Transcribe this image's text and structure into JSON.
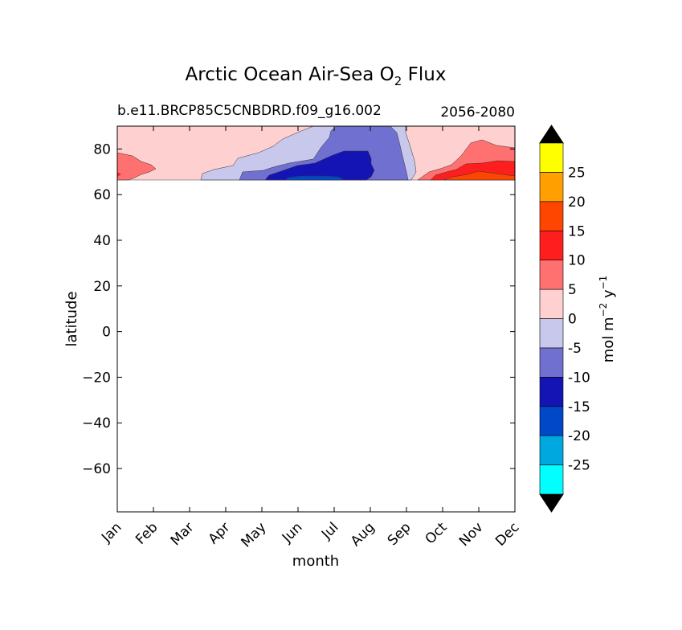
{
  "chart_data": {
    "type": "contour",
    "title_main": "Arctic Ocean Air-Sea O",
    "title_sub_2": "2",
    "title_end": " Flux",
    "subtitle_left": "b.e11.BRCP85C5CNBDRD.f09_g16.002",
    "subtitle_right": "2056-2080",
    "xlabel": "month",
    "ylabel": "latitude",
    "x_ticks": [
      "Jan",
      "Feb",
      "Mar",
      "Apr",
      "May",
      "Jun",
      "Jul",
      "Aug",
      "Sep",
      "Oct",
      "Nov",
      "Dec"
    ],
    "y_ticks": [
      80,
      60,
      40,
      20,
      0,
      -20,
      -40,
      -60
    ],
    "y_tick_labels": [
      "80",
      "60",
      "40",
      "20",
      "0",
      "−20",
      "−40",
      "−60"
    ],
    "ylim": [
      -79,
      90
    ],
    "data_lat_range": [
      66.5,
      90
    ],
    "colorbar": {
      "label_main": "mol m",
      "label_exp1": "−2",
      "label_y": " y",
      "label_exp2": "−1",
      "levels": [
        "-30",
        "-25",
        "-20",
        "-15",
        "-10",
        "-5",
        "0",
        "5",
        "10",
        "15",
        "20",
        "25",
        "30"
      ],
      "tick_labels": [
        "-25",
        "-20",
        "-15",
        "-10",
        "-5",
        "0",
        "5",
        "10",
        "15",
        "20",
        "25"
      ],
      "colors": [
        "#00ffff",
        "#00a8e0",
        "#0048c8",
        "#1414b4",
        "#7070d0",
        "#c8c8ec",
        "#ffd0d0",
        "#ff7070",
        "#ff1e1e",
        "#ff4600",
        "#ffa000",
        "#ffff00"
      ],
      "extend_color": "#000000"
    },
    "regions": [
      {
        "level": "0 to 5",
        "description": "background at high latitudes for most of the year"
      },
      {
        "level": "-5 to 0",
        "months": [
          "Apr",
          "May",
          "Jun",
          "Jul",
          "Aug",
          "Sep"
        ],
        "lat": [
          66.5,
          90
        ]
      },
      {
        "level": "-10 to -5",
        "months": [
          "Jun",
          "Jul",
          "Aug",
          "Sep"
        ],
        "lat": [
          66.5,
          90
        ]
      },
      {
        "level": "-15 to -10",
        "months": [
          "Jun",
          "Jul",
          "Aug"
        ],
        "lat": [
          66.5,
          79
        ]
      },
      {
        "level": "-20 to -15",
        "months": [
          "Jun",
          "Jul"
        ],
        "lat": [
          66.5,
          68
        ]
      },
      {
        "level": "5 to 10",
        "months": [
          "Jan",
          "Oct",
          "Nov",
          "Dec"
        ],
        "lat": [
          66.5,
          82
        ]
      },
      {
        "level": "10 to 15",
        "months": [
          "Oct",
          "Nov",
          "Dec"
        ],
        "lat": [
          66.5,
          74
        ]
      },
      {
        "level": "15 to 20",
        "months": [
          "Nov",
          "Dec"
        ],
        "lat": [
          66.5,
          70
        ]
      }
    ]
  }
}
